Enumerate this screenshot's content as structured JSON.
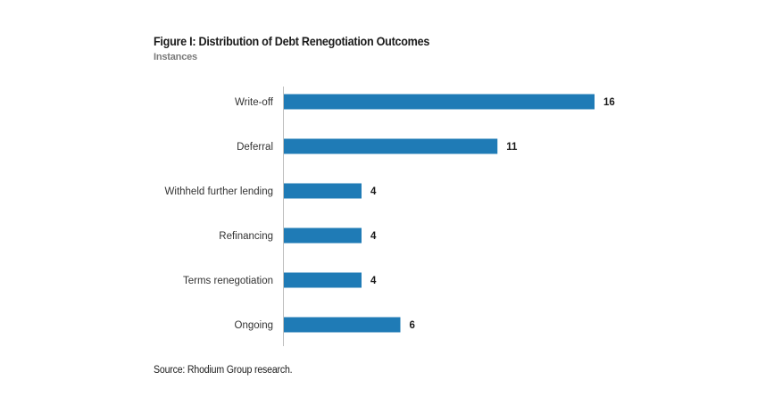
{
  "chart_data": {
    "type": "bar",
    "orientation": "horizontal",
    "title": "Figure I: Distribution of Debt Renegotiation Outcomes",
    "subtitle": "Instances",
    "categories": [
      "Write-off",
      "Deferral",
      "Withheld further lending",
      "Refinancing",
      "Terms renegotiation",
      "Ongoing"
    ],
    "values": [
      16,
      11,
      4,
      4,
      4,
      6
    ],
    "xlim": [
      0,
      16
    ],
    "grid": false,
    "bar_color": "#1f7bb6",
    "source": "Source: Rhodium Group research."
  }
}
